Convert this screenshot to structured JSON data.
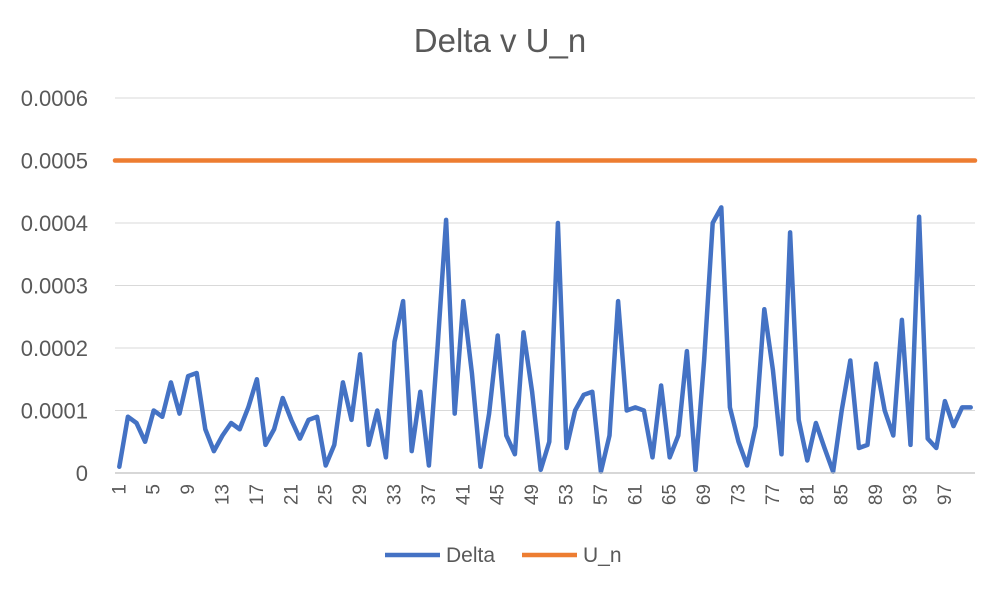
{
  "chart_data": {
    "type": "line",
    "title": "Delta v U_n",
    "xlabel": "",
    "ylabel": "",
    "ylim": [
      0,
      0.0006
    ],
    "y_ticks": [
      "0",
      "0.0001",
      "0.0002",
      "0.0003",
      "0.0004",
      "0.0005",
      "0.0006"
    ],
    "x_tick_labels": [
      "1",
      "5",
      "9",
      "13",
      "17",
      "21",
      "25",
      "29",
      "33",
      "37",
      "41",
      "45",
      "49",
      "53",
      "57",
      "61",
      "65",
      "69",
      "73",
      "77",
      "81",
      "85",
      "89",
      "93",
      "97"
    ],
    "x": [
      1,
      2,
      3,
      4,
      5,
      6,
      7,
      8,
      9,
      10,
      11,
      12,
      13,
      14,
      15,
      16,
      17,
      18,
      19,
      20,
      21,
      22,
      23,
      24,
      25,
      26,
      27,
      28,
      29,
      30,
      31,
      32,
      33,
      34,
      35,
      36,
      37,
      38,
      39,
      40,
      41,
      42,
      43,
      44,
      45,
      46,
      47,
      48,
      49,
      50,
      51,
      52,
      53,
      54,
      55,
      56,
      57,
      58,
      59,
      60,
      61,
      62,
      63,
      64,
      65,
      66,
      67,
      68,
      69,
      70,
      71,
      72,
      73,
      74,
      75,
      76,
      77,
      78,
      79,
      80,
      81,
      82,
      83,
      84,
      85,
      86,
      87,
      88,
      89,
      90,
      91,
      92,
      93,
      94,
      95,
      96,
      97,
      98,
      99,
      100
    ],
    "series": [
      {
        "name": "Delta",
        "color": "#4472c4",
        "values": [
          1e-05,
          9e-05,
          8e-05,
          5e-05,
          0.0001,
          9e-05,
          0.000145,
          9.5e-05,
          0.000155,
          0.00016,
          7e-05,
          3.5e-05,
          6e-05,
          8e-05,
          7e-05,
          0.000105,
          0.00015,
          4.5e-05,
          7e-05,
          0.00012,
          8.5e-05,
          5.5e-05,
          8.5e-05,
          9e-05,
          1.2e-05,
          4.5e-05,
          0.000145,
          8.5e-05,
          0.00019,
          4.5e-05,
          0.0001,
          2.5e-05,
          0.00021,
          0.000275,
          3.5e-05,
          0.00013,
          1.2e-05,
          0.0002,
          0.000405,
          9.5e-05,
          0.000275,
          0.00016,
          1e-05,
          9.5e-05,
          0.00022,
          6e-05,
          3e-05,
          0.000225,
          0.00013,
          5e-06,
          5e-05,
          0.0004,
          4e-05,
          0.0001,
          0.000125,
          0.00013,
          2e-06,
          6e-05,
          0.000275,
          0.0001,
          0.000105,
          0.0001,
          2.5e-05,
          0.00014,
          2.5e-05,
          6e-05,
          0.000195,
          5e-06,
          0.00018,
          0.0004,
          0.000425,
          0.000105,
          5e-05,
          1.2e-05,
          7.5e-05,
          0.000262,
          0.000165,
          3e-05,
          0.000385,
          8.5e-05,
          2e-05,
          8e-05,
          4e-05,
          2e-06,
          0.0001,
          0.00018,
          4e-05,
          4.5e-05,
          0.000175,
          0.0001,
          6e-05,
          0.000245,
          4.5e-05,
          0.00041,
          5.5e-05,
          4e-05,
          0.000115,
          7.5e-05,
          0.000105,
          0.000105
        ]
      },
      {
        "name": "U_n",
        "color": "#ed7d31",
        "constant": 0.0005
      }
    ],
    "legend": {
      "position": "bottom",
      "entries": [
        "Delta",
        "U_n"
      ]
    },
    "grid": "horizontal"
  }
}
